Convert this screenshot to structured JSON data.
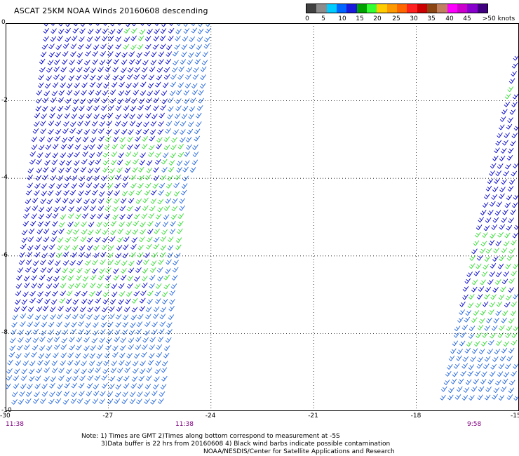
{
  "title": "ASCAT 25KM NOAA Winds 20160608 descending",
  "colorbar": {
    "colors": [
      "#404040",
      "#8c8c8c",
      "#00ccff",
      "#0066ff",
      "#1a1adc",
      "#00a000",
      "#33ff33",
      "#ffcc00",
      "#ff9900",
      "#ff6600",
      "#ff2020",
      "#cc0000",
      "#8b4513",
      "#c08060",
      "#ff00ff",
      "#cc00cc",
      "#8800cc",
      "#400080"
    ],
    "tick_labels": [
      "0",
      "5",
      "10",
      "15",
      "20",
      "25",
      "30",
      "35",
      "40",
      "45",
      ">50 knots"
    ]
  },
  "map": {
    "x_axis_labels": [
      "-30",
      "-27",
      "-24",
      "-21",
      "-18",
      "-15"
    ],
    "y_axis_labels": [
      "0",
      "-2",
      "-4",
      "-6",
      "-8",
      "-10"
    ],
    "x_range": [
      -30,
      -15
    ],
    "y_range": [
      0,
      -10
    ],
    "grid": "dotted",
    "barb_colors": {
      "low": "#0000cc",
      "mid": "#2266dd",
      "high": "#33dd33"
    },
    "swaths": [
      {
        "time": "11:38",
        "end_time": "11:38"
      },
      {
        "time": "9:58"
      }
    ]
  },
  "notes": {
    "line1": "Note: 1) Times are GMT 2)Times along bottom correspond to measurement at -5S",
    "line2": "3)Data buffer is 22 hrs from 20160608 4) Black wind barbs indicate possible contamination",
    "line3": "NOAA/NESDIS/Center for Satellite Applications and Research"
  }
}
